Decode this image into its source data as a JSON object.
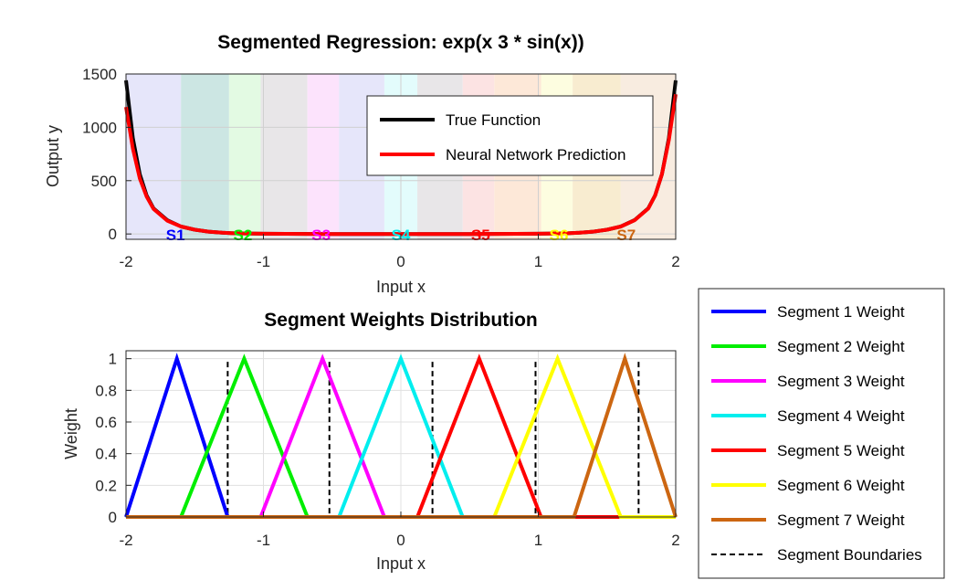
{
  "chart_data": [
    {
      "type": "line",
      "title": "Segmented Regression: exp(x  3 * sin(x))",
      "xlabel": "Input x",
      "ylabel": "Output y",
      "xlim": [
        -2,
        2
      ],
      "ylim": [
        -50,
        1500
      ],
      "xticks": [
        "-2",
        "-1",
        "0",
        "1",
        "2"
      ],
      "yticks": [
        "0",
        "500",
        "1000",
        "1500"
      ],
      "ytick_values": [
        0,
        500,
        1000,
        1500
      ],
      "grid": true,
      "legend_position": "top-right",
      "segment_bands": [
        {
          "x0": -2.0,
          "x1": -1.6,
          "color": "#e6e6fa"
        },
        {
          "x0": -1.6,
          "x1": -1.25,
          "color": "#cce6e3"
        },
        {
          "x0": -1.25,
          "x1": -1.02,
          "color": "#e3fae3"
        },
        {
          "x0": -1.02,
          "x1": -0.68,
          "color": "#e8e6e8"
        },
        {
          "x0": -0.68,
          "x1": -0.45,
          "color": "#fce3fc"
        },
        {
          "x0": -0.45,
          "x1": -0.12,
          "color": "#e6e6fa"
        },
        {
          "x0": -0.12,
          "x1": 0.12,
          "color": "#e3fcfc"
        },
        {
          "x0": 0.12,
          "x1": 0.45,
          "color": "#e8e6e8"
        },
        {
          "x0": 0.45,
          "x1": 0.68,
          "color": "#fce3e3"
        },
        {
          "x0": 0.68,
          "x1": 1.02,
          "color": "#fde8d8"
        },
        {
          "x0": 1.02,
          "x1": 1.25,
          "color": "#fdfde0"
        },
        {
          "x0": 1.25,
          "x1": 1.6,
          "color": "#f8ecd0"
        },
        {
          "x0": 1.6,
          "x1": 2.0,
          "color": "#f8ece0"
        }
      ],
      "segment_labels": [
        {
          "text": "S1",
          "x": -1.64,
          "color": "#0000ff"
        },
        {
          "text": "S2",
          "x": -1.15,
          "color": "#00ee00"
        },
        {
          "text": "S3",
          "x": -0.58,
          "color": "#ff00ff"
        },
        {
          "text": "S4",
          "x": 0.0,
          "color": "#00eeee"
        },
        {
          "text": "S5",
          "x": 0.58,
          "color": "#ff0000"
        },
        {
          "text": "S6",
          "x": 1.15,
          "color": "#ffff00"
        },
        {
          "text": "S7",
          "x": 1.64,
          "color": "#cc6611"
        }
      ],
      "series": [
        {
          "name": "True Function",
          "color": "#000000",
          "x": [
            -2.0,
            -1.95,
            -1.9,
            -1.85,
            -1.8,
            -1.7,
            -1.6,
            -1.5,
            -1.4,
            -1.3,
            -1.2,
            -1.0,
            -0.5,
            0.0,
            0.5,
            1.0,
            1.2,
            1.3,
            1.4,
            1.5,
            1.6,
            1.7,
            1.8,
            1.85,
            1.9,
            1.95,
            2.0
          ],
          "y": [
            1440,
            900,
            560,
            360,
            240,
            130,
            70,
            40,
            22,
            12,
            6,
            2,
            0,
            0,
            0,
            2,
            6,
            12,
            22,
            40,
            70,
            130,
            240,
            360,
            560,
            900,
            1440
          ]
        },
        {
          "name": "Neural Network Prediction",
          "color": "#ff0000",
          "x": [
            -2.0,
            -1.95,
            -1.9,
            -1.85,
            -1.8,
            -1.7,
            -1.6,
            -1.5,
            -1.4,
            -1.3,
            -1.2,
            -1.0,
            -0.5,
            0.0,
            0.5,
            1.0,
            1.2,
            1.3,
            1.4,
            1.5,
            1.6,
            1.7,
            1.8,
            1.85,
            1.9,
            1.95,
            2.0
          ],
          "y": [
            1190,
            800,
            520,
            350,
            235,
            125,
            70,
            40,
            22,
            12,
            6,
            2,
            0,
            0,
            0,
            2,
            6,
            12,
            22,
            40,
            70,
            128,
            238,
            360,
            560,
            880,
            1310
          ]
        }
      ]
    },
    {
      "type": "line",
      "title": "Segment Weights Distribution",
      "xlabel": "Input x",
      "ylabel": "Weight",
      "xlim": [
        -2,
        2
      ],
      "ylim": [
        0,
        1.05
      ],
      "xticks": [
        "-2",
        "-1",
        "0",
        "1",
        "2"
      ],
      "yticks": [
        "0",
        "0.2",
        "0.4",
        "0.6",
        "0.8",
        "1"
      ],
      "ytick_values": [
        0,
        0.2,
        0.4,
        0.6,
        0.8,
        1
      ],
      "grid": true,
      "legend_position": "outside-right",
      "series": [
        {
          "name": "Segment 1 Weight",
          "color": "#0000ff",
          "x": [
            -2.0,
            -2.0,
            -1.63,
            -1.26,
            2.0
          ],
          "y": [
            0,
            0,
            1,
            0,
            0
          ]
        },
        {
          "name": "Segment 2 Weight",
          "color": "#00ee00",
          "x": [
            -2.0,
            -1.6,
            -1.14,
            -0.68,
            2.0
          ],
          "y": [
            0,
            0,
            1,
            0,
            0
          ]
        },
        {
          "name": "Segment 3 Weight",
          "color": "#ff00ff",
          "x": [
            -2.0,
            -1.02,
            -0.57,
            -0.12,
            2.0
          ],
          "y": [
            0,
            0,
            1,
            0,
            0
          ]
        },
        {
          "name": "Segment 4 Weight",
          "color": "#00eeee",
          "x": [
            -2.0,
            -0.45,
            0.0,
            0.45,
            2.0
          ],
          "y": [
            0,
            0,
            1,
            0,
            0
          ]
        },
        {
          "name": "Segment 5 Weight",
          "color": "#ff0000",
          "x": [
            -2.0,
            0.12,
            0.57,
            1.02,
            2.0
          ],
          "y": [
            0,
            0,
            1,
            0,
            0
          ]
        },
        {
          "name": "Segment 6 Weight",
          "color": "#ffff00",
          "x": [
            -2.0,
            0.68,
            1.14,
            1.6,
            2.0
          ],
          "y": [
            0,
            0,
            1,
            0,
            0
          ]
        },
        {
          "name": "Segment 7 Weight",
          "color": "#cc6611",
          "x": [
            -2.0,
            1.26,
            1.63,
            2.0,
            2.0
          ],
          "y": [
            0,
            0,
            1,
            0,
            0
          ]
        }
      ],
      "boundaries": {
        "name": "Segment Boundaries",
        "color": "#000000",
        "x": [
          -1.26,
          -0.52,
          0.23,
          0.98,
          1.73
        ]
      }
    }
  ]
}
